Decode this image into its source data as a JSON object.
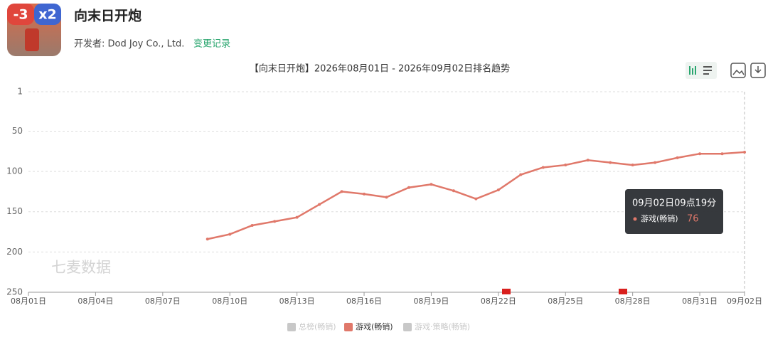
{
  "header": {
    "icon_texts": [
      "-3",
      "x2"
    ],
    "app_name": "向末日开炮",
    "developer": "开发者: Dod Joy Co., Ltd.",
    "change_log": "变更记录"
  },
  "chart_data": {
    "type": "line",
    "title": "【向末日开炮】2026年08月01日 - 2026年09月02日排名趋势",
    "watermark": "七麦数据",
    "categories": [
      "08月01日",
      null,
      null,
      "08月04日",
      null,
      null,
      "08月07日",
      null,
      null,
      "08月10日",
      null,
      null,
      "08月13日",
      null,
      null,
      "08月16日",
      null,
      null,
      "08月19日",
      null,
      null,
      "08月22日",
      null,
      null,
      "08月25日",
      null,
      null,
      "08月28日",
      null,
      null,
      "08月31日",
      null,
      "09月02日"
    ],
    "series": [
      {
        "name": "总榜(畅销)",
        "color": "#c8c8c8",
        "visible": false,
        "values": [
          null,
          null,
          null,
          null,
          null,
          null,
          null,
          null,
          null,
          null,
          null,
          null,
          null,
          null,
          null,
          null,
          null,
          null,
          null,
          null,
          null,
          null,
          null,
          null,
          null,
          null,
          null,
          null,
          null,
          null,
          null,
          null,
          null
        ]
      },
      {
        "name": "游戏(畅销)",
        "color": "#e0786a",
        "visible": true,
        "values": [
          null,
          null,
          null,
          null,
          null,
          null,
          null,
          null,
          184,
          178,
          167,
          162,
          157,
          141,
          125,
          128,
          132,
          120,
          116,
          124,
          134,
          123,
          104,
          95,
          92,
          86,
          89,
          92,
          89,
          83,
          78,
          78,
          76
        ]
      },
      {
        "name": "游戏·策略(畅销)",
        "color": "#c8c8c8",
        "visible": false,
        "values": [
          null,
          null,
          null,
          null,
          null,
          null,
          null,
          null,
          null,
          null,
          null,
          null,
          null,
          null,
          null,
          null,
          null,
          null,
          null,
          null,
          null,
          null,
          null,
          null,
          null,
          null,
          null,
          null,
          null,
          null,
          null,
          null,
          null
        ]
      }
    ],
    "ylim": [
      1,
      250
    ],
    "y_inverted": true,
    "yticks": [
      1,
      50,
      100,
      150,
      200,
      250
    ],
    "grid": true,
    "tooltip": {
      "title": "09月02日09点19分",
      "series_index": 1,
      "point_index": 32
    }
  }
}
